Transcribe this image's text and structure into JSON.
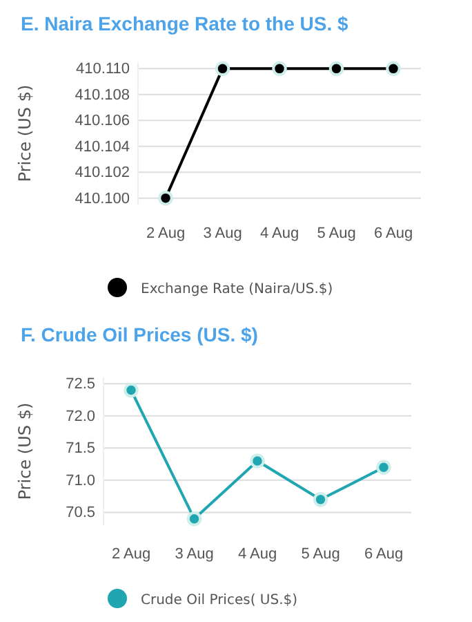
{
  "chart_data": [
    {
      "type": "line",
      "title": "E. Naira Exchange Rate to the US. $",
      "ylabel": "Price (US $)",
      "categories": [
        "2 Aug",
        "3 Aug",
        "4 Aug",
        "5 Aug",
        "6 Aug"
      ],
      "series": [
        {
          "name": "Exchange Rate (Naira/US.$)",
          "color": "#000000",
          "values": [
            410.1,
            410.11,
            410.11,
            410.11,
            410.11
          ]
        }
      ],
      "ylim": [
        410.0995,
        410.1105
      ],
      "yticks": [
        {
          "value": 410.1,
          "label": "410.100"
        },
        {
          "value": 410.102,
          "label": "410.102"
        },
        {
          "value": 410.104,
          "label": "410.104"
        },
        {
          "value": 410.106,
          "label": "410.106"
        },
        {
          "value": 410.108,
          "label": "410.108"
        },
        {
          "value": 410.11,
          "label": "410.110"
        }
      ],
      "grid": "y",
      "legend": "bottom",
      "marker": "circle",
      "line_style": "solid"
    },
    {
      "type": "line",
      "title": "F.  Crude Oil Prices (US. $)",
      "ylabel": "Price (US $)",
      "categories": [
        "2 Aug",
        "3 Aug",
        "4 Aug",
        "5 Aug",
        "6 Aug"
      ],
      "series": [
        {
          "name": "Crude Oil Prices( US.$)",
          "color": "#20a6b0",
          "values": [
            72.4,
            70.4,
            71.3,
            70.7,
            71.2
          ]
        }
      ],
      "ylim": [
        70.3,
        72.6
      ],
      "yticks": [
        {
          "value": 70.5,
          "label": "70.5"
        },
        {
          "value": 71,
          "label": "71.0"
        },
        {
          "value": 71.5,
          "label": "71.5"
        },
        {
          "value": 72,
          "label": "72.0"
        },
        {
          "value": 72.5,
          "label": "72.5"
        }
      ],
      "grid": "y",
      "legend": "bottom",
      "marker": "circle",
      "line_style": "solid"
    }
  ]
}
